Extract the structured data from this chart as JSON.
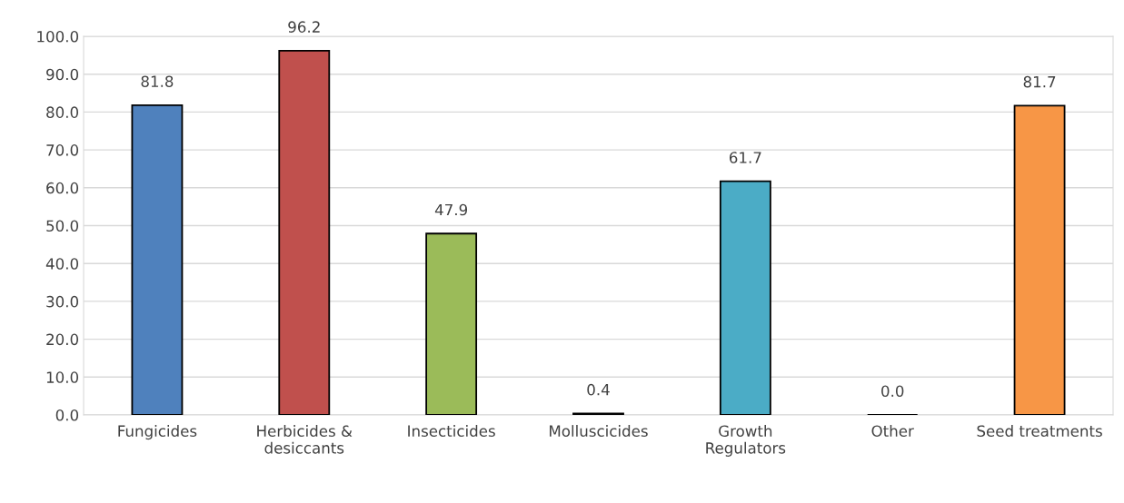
{
  "chart_data": {
    "type": "bar",
    "categories": [
      "Fungicides",
      "Herbicides &\ndesiccants",
      "Insecticides",
      "Molluscicides",
      "Growth\nRegulators",
      "Other",
      "Seed treatments"
    ],
    "values": [
      81.8,
      96.2,
      47.9,
      0.4,
      61.7,
      0.0,
      81.7
    ],
    "colors": [
      "#4f81bd",
      "#c0504d",
      "#9bbb59",
      "#8064a2",
      "#4bacc6",
      "#000000",
      "#f79646"
    ],
    "ylim": [
      0,
      100
    ],
    "yticks": [
      {
        "value": 0,
        "label": "0.0"
      },
      {
        "value": 10,
        "label": "10.0"
      },
      {
        "value": 20,
        "label": "20.0"
      },
      {
        "value": 30,
        "label": "30.0"
      },
      {
        "value": 40,
        "label": "40.0"
      },
      {
        "value": 50,
        "label": "50.0"
      },
      {
        "value": 60,
        "label": "60.0"
      },
      {
        "value": 70,
        "label": "70.0"
      },
      {
        "value": 80,
        "label": "80.0"
      },
      {
        "value": 90,
        "label": "90.0"
      },
      {
        "value": 100,
        "label": "100.0"
      }
    ],
    "value_labels": [
      "81.8",
      "96.2",
      "47.9",
      "0.4",
      "61.7",
      "0.0",
      "81.7"
    ],
    "grid": "y"
  }
}
